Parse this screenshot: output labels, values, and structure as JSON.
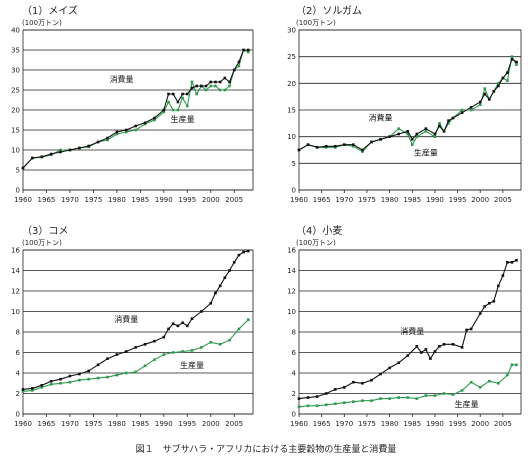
{
  "caption": "図１　サブサハラ・アフリカにおける主要穀物の生産量と消費量",
  "colors": {
    "consumption": "#111111",
    "production": "#2e9a4e",
    "grid": "#222222"
  },
  "chart_data": [
    {
      "type": "line",
      "title": "（1）メイズ",
      "ylabel": "(100万トン)",
      "xlim": [
        1960,
        2009
      ],
      "ylim": [
        0,
        40
      ],
      "yticks": [
        0,
        5,
        10,
        15,
        20,
        25,
        30,
        35,
        40
      ],
      "xticks": [
        1960,
        1965,
        1970,
        1975,
        1980,
        1985,
        1990,
        1995,
        2000,
        2005
      ],
      "grid": true,
      "series": [
        {
          "name": "消費量",
          "x": [
            1960,
            1962,
            1964,
            1966,
            1968,
            1970,
            1972,
            1974,
            1976,
            1978,
            1980,
            1982,
            1984,
            1986,
            1988,
            1990,
            1991,
            1992,
            1993,
            1994,
            1995,
            1996,
            1997,
            1998,
            1999,
            2000,
            2001,
            2002,
            2003,
            2004,
            2005,
            2006,
            2007,
            2008
          ],
          "values": [
            5.5,
            8,
            8.3,
            9,
            9.5,
            10,
            10.5,
            11,
            12,
            13,
            14.5,
            15,
            16,
            16.8,
            18,
            20,
            24,
            24,
            22,
            24,
            24,
            25.5,
            26,
            26,
            26,
            27,
            27,
            27,
            28,
            27,
            30,
            32,
            35,
            35
          ]
        },
        {
          "name": "生産量",
          "x": [
            1960,
            1962,
            1964,
            1966,
            1968,
            1970,
            1972,
            1974,
            1976,
            1978,
            1980,
            1982,
            1984,
            1986,
            1988,
            1990,
            1991,
            1992,
            1993,
            1994,
            1995,
            1996,
            1997,
            1998,
            1999,
            2000,
            2001,
            2002,
            2003,
            2004,
            2005,
            2006,
            2007,
            2008
          ],
          "values": [
            5.5,
            8,
            8.2,
            8.8,
            10,
            10,
            10.5,
            10.8,
            12,
            12.5,
            14,
            14.5,
            15,
            16.5,
            17.5,
            19.5,
            22,
            20,
            20,
            23,
            21,
            27,
            24,
            26,
            25,
            26,
            26,
            25,
            25,
            26,
            30,
            31,
            35,
            34.5
          ]
        }
      ],
      "annotations": [
        {
          "text": "消費量",
          "x": 1981,
          "y": 27
        },
        {
          "text": "生産量",
          "x": 1994,
          "y": 17
        }
      ]
    },
    {
      "type": "line",
      "title": "（2）ソルガム",
      "ylabel": "(100万トン)",
      "xlim": [
        1960,
        2009
      ],
      "ylim": [
        0,
        30
      ],
      "yticks": [
        0,
        5,
        10,
        15,
        20,
        25,
        30
      ],
      "xticks": [
        1960,
        1965,
        1970,
        1975,
        1980,
        1985,
        1990,
        1995,
        2000,
        2005
      ],
      "grid": true,
      "series": [
        {
          "name": "消費量",
          "x": [
            1960,
            1962,
            1964,
            1966,
            1968,
            1970,
            1972,
            1974,
            1976,
            1978,
            1980,
            1982,
            1984,
            1985,
            1986,
            1988,
            1990,
            1991,
            1992,
            1993,
            1994,
            1996,
            1998,
            2000,
            2001,
            2002,
            2003,
            2004,
            2005,
            2006,
            2007,
            2008
          ],
          "values": [
            7.5,
            8.5,
            8,
            8.2,
            8.2,
            8.5,
            8.5,
            7.5,
            9,
            9.5,
            10,
            10.5,
            11,
            9.5,
            10.5,
            11.5,
            10.5,
            12,
            11,
            13,
            13.5,
            14.5,
            15.5,
            16.5,
            18,
            17,
            18.5,
            19.5,
            21,
            22,
            24.5,
            24
          ]
        },
        {
          "name": "生産量",
          "x": [
            1960,
            1962,
            1964,
            1966,
            1968,
            1970,
            1972,
            1974,
            1976,
            1978,
            1980,
            1982,
            1984,
            1985,
            1986,
            1988,
            1990,
            1991,
            1992,
            1993,
            1994,
            1996,
            1998,
            2000,
            2001,
            2002,
            2003,
            2004,
            2005,
            2006,
            2007,
            2008
          ],
          "values": [
            7.5,
            8.5,
            8,
            8,
            8,
            8.5,
            8.2,
            7.2,
            9,
            9.5,
            10,
            11.5,
            10.5,
            8.5,
            10,
            11,
            10,
            12.5,
            11,
            12.5,
            13.5,
            15,
            15,
            16,
            19,
            17,
            18.5,
            20,
            21,
            20.5,
            25,
            23.5
          ]
        }
      ],
      "annotations": [
        {
          "text": "消費量",
          "x": 1978,
          "y": 13
        },
        {
          "text": "生産量",
          "x": 1988,
          "y": 6.5
        }
      ]
    },
    {
      "type": "line",
      "title": "（3）コメ",
      "ylabel": "(100万トン)",
      "xlim": [
        1960,
        2009
      ],
      "ylim": [
        0,
        16
      ],
      "yticks": [
        0,
        2,
        4,
        6,
        8,
        10,
        12,
        14,
        16
      ],
      "xticks": [
        1960,
        1965,
        1970,
        1975,
        1980,
        1985,
        1990,
        1995,
        2000,
        2005
      ],
      "grid": true,
      "series": [
        {
          "name": "消費量",
          "x": [
            1960,
            1962,
            1964,
            1966,
            1968,
            1970,
            1972,
            1974,
            1976,
            1978,
            1980,
            1982,
            1984,
            1986,
            1988,
            1990,
            1991,
            1992,
            1993,
            1994,
            1995,
            1996,
            1998,
            2000,
            2001,
            2002,
            2003,
            2004,
            2005,
            2006,
            2007,
            2008
          ],
          "values": [
            2.4,
            2.5,
            2.8,
            3.2,
            3.4,
            3.7,
            3.9,
            4.2,
            4.8,
            5.4,
            5.8,
            6.1,
            6.5,
            6.8,
            7.1,
            7.5,
            8.3,
            8.8,
            8.6,
            8.9,
            8.6,
            9.3,
            10,
            10.8,
            11.8,
            12.5,
            13.3,
            14,
            14.8,
            15.5,
            15.8,
            15.9
          ]
        },
        {
          "name": "生産量",
          "x": [
            1960,
            1962,
            1964,
            1966,
            1968,
            1970,
            1972,
            1974,
            1976,
            1978,
            1980,
            1982,
            1984,
            1986,
            1988,
            1990,
            1992,
            1994,
            1996,
            1998,
            2000,
            2002,
            2004,
            2006,
            2008
          ],
          "values": [
            2.2,
            2.3,
            2.6,
            2.9,
            3,
            3.1,
            3.3,
            3.4,
            3.5,
            3.6,
            3.8,
            4,
            4.1,
            4.7,
            5.3,
            5.8,
            6,
            6.1,
            6.2,
            6.5,
            7,
            6.8,
            7.2,
            8.3,
            9.2
          ]
        }
      ],
      "annotations": [
        {
          "text": "消費量",
          "x": 1982,
          "y": 9
        },
        {
          "text": "生産量",
          "x": 1996,
          "y": 4.5
        }
      ]
    },
    {
      "type": "line",
      "title": "（4）小麦",
      "ylabel": "(100万トン)",
      "xlim": [
        1960,
        2009
      ],
      "ylim": [
        0,
        16
      ],
      "yticks": [
        0,
        2,
        4,
        6,
        8,
        10,
        12,
        14,
        16
      ],
      "xticks": [
        1960,
        1965,
        1970,
        1975,
        1980,
        1985,
        1990,
        1995,
        2000,
        2005
      ],
      "grid": true,
      "series": [
        {
          "name": "消費量",
          "x": [
            1960,
            1962,
            1964,
            1966,
            1968,
            1970,
            1972,
            1974,
            1976,
            1978,
            1980,
            1982,
            1984,
            1986,
            1987,
            1988,
            1989,
            1990,
            1991,
            1992,
            1994,
            1996,
            1997,
            1998,
            2000,
            2001,
            2002,
            2003,
            2004,
            2005,
            2006,
            2007,
            2008
          ],
          "values": [
            1.5,
            1.6,
            1.7,
            2,
            2.4,
            2.6,
            3.1,
            3,
            3.3,
            3.9,
            4.5,
            5,
            5.7,
            6.6,
            6,
            6.3,
            5.4,
            6.1,
            6.6,
            6.8,
            6.8,
            6.5,
            8.2,
            8.3,
            9.8,
            10.5,
            10.8,
            11,
            12.5,
            13.5,
            14.8,
            14.8,
            15
          ]
        },
        {
          "name": "生産量",
          "x": [
            1960,
            1962,
            1964,
            1966,
            1968,
            1970,
            1972,
            1974,
            1976,
            1978,
            1980,
            1982,
            1984,
            1986,
            1988,
            1990,
            1992,
            1994,
            1996,
            1998,
            2000,
            2002,
            2004,
            2006,
            2007,
            2008
          ],
          "values": [
            0.7,
            0.8,
            0.8,
            0.9,
            1,
            1.1,
            1.2,
            1.3,
            1.3,
            1.5,
            1.5,
            1.6,
            1.6,
            1.5,
            1.8,
            1.8,
            2,
            1.9,
            2.3,
            3.1,
            2.6,
            3.2,
            3,
            3.8,
            4.8,
            4.8
          ]
        }
      ],
      "annotations": [
        {
          "text": "消費量",
          "x": 1985,
          "y": 7.8
        },
        {
          "text": "生産量",
          "x": 1997,
          "y": 0.7
        }
      ]
    }
  ]
}
